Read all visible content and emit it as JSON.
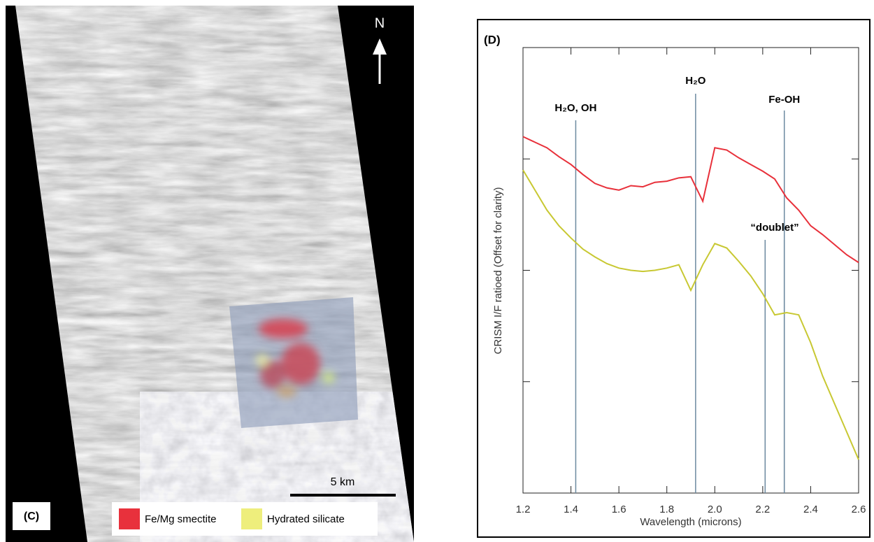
{
  "image_panel": {
    "label": "(C)",
    "north": "N",
    "scale_bar": "5 km",
    "legend": [
      {
        "name": "Fe/Mg smectite",
        "color": "#e8313c"
      },
      {
        "name": "Hydrated silicate",
        "color": "#eeee7c"
      }
    ]
  },
  "chart_data": {
    "type": "line",
    "panel_label": "(D)",
    "x_label": "Wavelength (microns)",
    "y_label": "CRISM I/F ratioed (Offset for clarity)",
    "xlim": [
      1.2,
      2.6
    ],
    "xticks": [
      1.2,
      1.4,
      1.6,
      1.8,
      {
        "value": 2,
        "label": "2.0"
      },
      2.2,
      2.4,
      2.6
    ],
    "ylim": [
      0,
      4
    ],
    "yticks": [
      0,
      1,
      2,
      3,
      4
    ],
    "x": [
      1.2,
      1.25,
      1.3,
      1.35,
      1.4,
      1.45,
      1.5,
      1.55,
      1.6,
      1.65,
      1.7,
      1.75,
      1.8,
      1.85,
      1.9,
      1.95,
      2.0,
      2.05,
      2.1,
      2.15,
      2.2,
      2.25,
      2.3,
      2.35,
      2.4,
      2.45,
      2.5,
      2.55,
      2.6
    ],
    "series": [
      {
        "color": "#e8303a",
        "values": [
          3.2,
          3.15,
          3.1,
          3.02,
          2.95,
          2.86,
          2.78,
          2.74,
          2.72,
          2.76,
          2.75,
          2.79,
          2.8,
          2.83,
          2.84,
          2.62,
          3.1,
          3.08,
          3.01,
          2.95,
          2.89,
          2.82,
          2.65,
          2.54,
          2.4,
          2.32,
          2.23,
          2.14,
          2.07
        ]
      },
      {
        "color": "#c8c832",
        "values": [
          2.9,
          2.72,
          2.54,
          2.4,
          2.29,
          2.19,
          2.12,
          2.06,
          2.02,
          2.0,
          1.99,
          2.0,
          2.02,
          2.05,
          1.82,
          2.05,
          2.24,
          2.2,
          2.08,
          1.95,
          1.79,
          1.6,
          1.62,
          1.6,
          1.35,
          1.05,
          0.8,
          0.55,
          0.3
        ]
      }
    ],
    "annotations": [
      {
        "label": "H₂O, OH",
        "x": [
          1.42
        ]
      },
      {
        "label": "H₂O",
        "x": [
          1.92
        ]
      },
      {
        "label": "Fe-OH",
        "x": [
          2.29
        ]
      },
      {
        "label": "“doublet”",
        "x": [
          2.21,
          2.29
        ]
      }
    ]
  }
}
